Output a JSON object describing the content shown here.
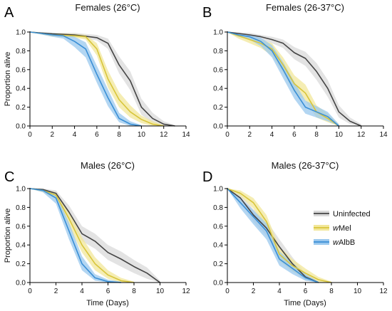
{
  "chart_data": [
    {
      "panel_letter": "A",
      "title": "Females (26°C)",
      "type": "line",
      "xlabel": "",
      "ylabel": "Proportion alive",
      "xlim": [
        0,
        14
      ],
      "ylim": [
        0,
        1.0
      ],
      "xticks": [
        "0",
        "2",
        "4",
        "6",
        "8",
        "10",
        "12",
        "14"
      ],
      "yticks": [
        "0.0",
        "0.2",
        "0.4",
        "0.6",
        "0.8",
        "1.0"
      ],
      "series": [
        {
          "name": "Uninfected",
          "color": "#444444",
          "band_color": "#d9d9d9",
          "x": [
            0,
            2,
            4,
            6,
            7,
            8,
            9,
            10,
            11,
            12,
            13
          ],
          "y": [
            1.0,
            0.98,
            0.97,
            0.94,
            0.88,
            0.65,
            0.48,
            0.2,
            0.08,
            0.02,
            0.0
          ],
          "lower": [
            1.0,
            0.96,
            0.95,
            0.91,
            0.82,
            0.56,
            0.38,
            0.12,
            0.03,
            0.0,
            0.0
          ],
          "upper": [
            1.0,
            0.99,
            0.99,
            0.97,
            0.93,
            0.74,
            0.58,
            0.29,
            0.14,
            0.05,
            0.01
          ]
        },
        {
          "name": "wMel",
          "color": "#d8c53a",
          "band_color": "#f2e79a",
          "x": [
            0,
            2,
            4,
            5,
            6,
            7,
            8,
            9,
            10,
            11,
            12
          ],
          "y": [
            1.0,
            0.97,
            0.96,
            0.95,
            0.82,
            0.5,
            0.28,
            0.15,
            0.07,
            0.02,
            0.0
          ],
          "lower": [
            1.0,
            0.95,
            0.94,
            0.92,
            0.75,
            0.41,
            0.2,
            0.09,
            0.03,
            0.0,
            0.0
          ],
          "upper": [
            1.0,
            0.99,
            0.98,
            0.97,
            0.88,
            0.59,
            0.36,
            0.22,
            0.11,
            0.05,
            0.01
          ]
        },
        {
          "name": "wAlbB",
          "color": "#3a8fd6",
          "band_color": "#9ac8ee",
          "x": [
            0,
            2,
            3,
            4,
            5,
            6,
            7,
            8,
            9,
            10
          ],
          "y": [
            1.0,
            0.97,
            0.96,
            0.9,
            0.82,
            0.55,
            0.3,
            0.08,
            0.02,
            0.0
          ],
          "lower": [
            1.0,
            0.95,
            0.93,
            0.84,
            0.73,
            0.46,
            0.21,
            0.04,
            0.0,
            0.0
          ],
          "upper": [
            1.0,
            0.99,
            0.98,
            0.95,
            0.89,
            0.64,
            0.39,
            0.14,
            0.05,
            0.01
          ]
        }
      ]
    },
    {
      "panel_letter": "B",
      "title": "Females (26-37°C)",
      "type": "line",
      "xlabel": "",
      "ylabel": "",
      "xlim": [
        0,
        14
      ],
      "ylim": [
        0,
        1.0
      ],
      "xticks": [
        "0",
        "2",
        "4",
        "6",
        "8",
        "10",
        "12",
        "14"
      ],
      "yticks": [
        "0.0",
        "0.2",
        "0.4",
        "0.6",
        "0.8",
        "1.0"
      ],
      "series": [
        {
          "name": "Uninfected",
          "color": "#444444",
          "band_color": "#d9d9d9",
          "x": [
            0,
            2,
            3,
            4,
            5,
            6,
            7,
            8,
            9,
            10,
            11,
            12
          ],
          "y": [
            1.0,
            0.97,
            0.95,
            0.92,
            0.88,
            0.78,
            0.72,
            0.58,
            0.4,
            0.15,
            0.05,
            0.0
          ],
          "lower": [
            1.0,
            0.95,
            0.92,
            0.88,
            0.83,
            0.71,
            0.64,
            0.49,
            0.31,
            0.09,
            0.02,
            0.0
          ],
          "upper": [
            1.0,
            0.99,
            0.97,
            0.95,
            0.92,
            0.84,
            0.79,
            0.67,
            0.49,
            0.22,
            0.09,
            0.02
          ]
        },
        {
          "name": "wMel",
          "color": "#d8c53a",
          "band_color": "#f2e79a",
          "x": [
            0,
            1,
            2,
            3,
            4,
            5,
            6,
            7,
            8,
            9,
            10
          ],
          "y": [
            1.0,
            0.96,
            0.92,
            0.88,
            0.82,
            0.65,
            0.45,
            0.35,
            0.15,
            0.08,
            0.0
          ],
          "lower": [
            1.0,
            0.93,
            0.88,
            0.83,
            0.75,
            0.57,
            0.36,
            0.27,
            0.09,
            0.04,
            0.0
          ],
          "upper": [
            1.0,
            0.98,
            0.95,
            0.92,
            0.88,
            0.73,
            0.54,
            0.44,
            0.22,
            0.13,
            0.02
          ]
        },
        {
          "name": "wAlbB",
          "color": "#3a8fd6",
          "band_color": "#9ac8ee",
          "x": [
            0,
            1,
            2,
            3,
            4,
            5,
            6,
            7,
            8,
            9,
            10
          ],
          "y": [
            1.0,
            0.97,
            0.95,
            0.9,
            0.8,
            0.6,
            0.38,
            0.2,
            0.15,
            0.1,
            0.0
          ],
          "lower": [
            1.0,
            0.95,
            0.92,
            0.85,
            0.73,
            0.51,
            0.29,
            0.13,
            0.09,
            0.05,
            0.0
          ],
          "upper": [
            1.0,
            0.99,
            0.97,
            0.94,
            0.86,
            0.68,
            0.47,
            0.27,
            0.21,
            0.15,
            0.02
          ]
        }
      ]
    },
    {
      "panel_letter": "C",
      "title": "Males (26°C)",
      "type": "line",
      "xlabel": "Time (Days)",
      "ylabel": "Proportion alive",
      "xlim": [
        0,
        12
      ],
      "ylim": [
        0,
        1.0
      ],
      "xticks": [
        "0",
        "2",
        "4",
        "6",
        "8",
        "10",
        "12"
      ],
      "yticks": [
        "0.0",
        "0.2",
        "0.4",
        "0.6",
        "0.8",
        "1.0"
      ],
      "series": [
        {
          "name": "Uninfected",
          "color": "#444444",
          "band_color": "#d9d9d9",
          "x": [
            0,
            1,
            2,
            3,
            4,
            5,
            6,
            7,
            8,
            9,
            10
          ],
          "y": [
            1.0,
            0.99,
            0.95,
            0.75,
            0.52,
            0.44,
            0.32,
            0.25,
            0.17,
            0.1,
            0.0
          ],
          "lower": [
            1.0,
            0.97,
            0.92,
            0.68,
            0.44,
            0.36,
            0.24,
            0.17,
            0.1,
            0.04,
            0.0
          ],
          "upper": [
            1.0,
            1.0,
            0.98,
            0.82,
            0.6,
            0.52,
            0.4,
            0.33,
            0.24,
            0.16,
            0.02
          ]
        },
        {
          "name": "wMel",
          "color": "#d8c53a",
          "band_color": "#f2e79a",
          "x": [
            0,
            1,
            2,
            3,
            4,
            5,
            6,
            7,
            8
          ],
          "y": [
            1.0,
            0.98,
            0.93,
            0.68,
            0.4,
            0.2,
            0.08,
            0.02,
            0.0
          ],
          "lower": [
            1.0,
            0.96,
            0.89,
            0.6,
            0.32,
            0.13,
            0.04,
            0.0,
            0.0
          ],
          "upper": [
            1.0,
            0.99,
            0.96,
            0.76,
            0.48,
            0.27,
            0.13,
            0.05,
            0.01
          ]
        },
        {
          "name": "wAlbB",
          "color": "#3a8fd6",
          "band_color": "#9ac8ee",
          "x": [
            0,
            1,
            2,
            3,
            4,
            5,
            6,
            7
          ],
          "y": [
            1.0,
            0.98,
            0.9,
            0.55,
            0.2,
            0.05,
            0.01,
            0.0
          ],
          "lower": [
            1.0,
            0.96,
            0.84,
            0.46,
            0.13,
            0.02,
            0.0,
            0.0
          ],
          "upper": [
            1.0,
            0.99,
            0.94,
            0.64,
            0.28,
            0.09,
            0.03,
            0.01
          ]
        }
      ]
    },
    {
      "panel_letter": "D",
      "title": "Males (26-37°C)",
      "type": "line",
      "xlabel": "Time (Days)",
      "ylabel": "",
      "xlim": [
        0,
        12
      ],
      "ylim": [
        0,
        1.0
      ],
      "xticks": [
        "0",
        "2",
        "4",
        "6",
        "8",
        "10",
        "12"
      ],
      "yticks": [
        "0.0",
        "0.2",
        "0.4",
        "0.6",
        "0.8",
        "1.0"
      ],
      "legend": "right",
      "series": [
        {
          "name": "Uninfected",
          "color": "#444444",
          "band_color": "#d9d9d9",
          "x": [
            0,
            1,
            2,
            3,
            4,
            5,
            6,
            7
          ],
          "y": [
            1.0,
            0.9,
            0.72,
            0.58,
            0.38,
            0.2,
            0.06,
            0.0
          ],
          "lower": [
            1.0,
            0.86,
            0.65,
            0.5,
            0.3,
            0.13,
            0.02,
            0.0
          ],
          "upper": [
            1.0,
            0.94,
            0.78,
            0.66,
            0.46,
            0.27,
            0.1,
            0.01
          ]
        },
        {
          "name": "wMel",
          "color": "#d8c53a",
          "band_color": "#f2e79a",
          "x": [
            0,
            1,
            2,
            3,
            4,
            5,
            6,
            7,
            8
          ],
          "y": [
            1.0,
            0.95,
            0.85,
            0.65,
            0.3,
            0.18,
            0.1,
            0.03,
            0.0
          ],
          "lower": [
            1.0,
            0.92,
            0.79,
            0.57,
            0.23,
            0.12,
            0.05,
            0.0,
            0.0
          ],
          "upper": [
            1.0,
            0.98,
            0.9,
            0.72,
            0.38,
            0.25,
            0.15,
            0.06,
            0.01
          ]
        },
        {
          "name": "wAlbB",
          "color": "#3a8fd6",
          "band_color": "#9ac8ee",
          "x": [
            0,
            1,
            2,
            3,
            4,
            5,
            6,
            7
          ],
          "y": [
            1.0,
            0.85,
            0.7,
            0.55,
            0.25,
            0.15,
            0.05,
            0.0
          ],
          "lower": [
            1.0,
            0.79,
            0.62,
            0.46,
            0.18,
            0.09,
            0.02,
            0.0
          ],
          "upper": [
            1.0,
            0.9,
            0.77,
            0.63,
            0.33,
            0.21,
            0.09,
            0.01
          ]
        }
      ]
    }
  ],
  "legend": {
    "items": [
      {
        "prefix": "",
        "label": "Uninfected",
        "color": "#444444",
        "band_color": "#d9d9d9"
      },
      {
        "prefix": "w",
        "label": "Mel",
        "color": "#d8c53a",
        "band_color": "#f2e79a"
      },
      {
        "prefix": "w",
        "label": "AlbB",
        "color": "#3a8fd6",
        "band_color": "#9ac8ee"
      }
    ]
  }
}
